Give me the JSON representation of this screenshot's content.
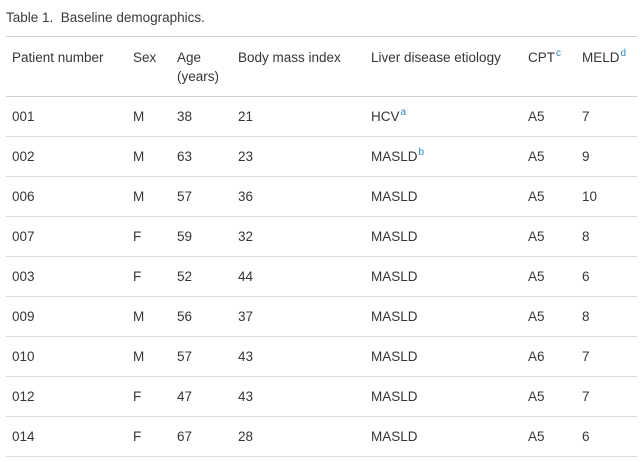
{
  "title": "Table 1.  Baseline demographics.",
  "colors": {
    "text": "#363636",
    "footnote_link_blue": "#2d87c0",
    "header_border": "#c9d2da",
    "row_separator": "#d8dcdf",
    "background": "#ffffff"
  },
  "table": {
    "columns": [
      {
        "label": "Patient number",
        "label2": "",
        "sup": ""
      },
      {
        "label": "Sex",
        "label2": "",
        "sup": ""
      },
      {
        "label": "Age",
        "label2": "(years)",
        "sup": ""
      },
      {
        "label": "Body mass index",
        "label2": "",
        "sup": ""
      },
      {
        "label": "Liver disease etiology",
        "label2": "",
        "sup": ""
      },
      {
        "label": "CPT",
        "label2": "",
        "sup": "c"
      },
      {
        "label": "MELD",
        "label2": "",
        "sup": "d"
      }
    ],
    "rows": [
      {
        "patient": "001",
        "sex": "M",
        "age": "38",
        "bmi": "21",
        "etiology": "HCV",
        "etiology_sup": "a",
        "cpt": "A5",
        "meld": "7"
      },
      {
        "patient": "002",
        "sex": "M",
        "age": "63",
        "bmi": "23",
        "etiology": "MASLD",
        "etiology_sup": "b",
        "cpt": "A5",
        "meld": "9"
      },
      {
        "patient": "006",
        "sex": "M",
        "age": "57",
        "bmi": "36",
        "etiology": "MASLD",
        "etiology_sup": "",
        "cpt": "A5",
        "meld": "10"
      },
      {
        "patient": "007",
        "sex": "F",
        "age": "59",
        "bmi": "32",
        "etiology": "MASLD",
        "etiology_sup": "",
        "cpt": "A5",
        "meld": "8"
      },
      {
        "patient": "003",
        "sex": "F",
        "age": "52",
        "bmi": "44",
        "etiology": "MASLD",
        "etiology_sup": "",
        "cpt": "A5",
        "meld": "6"
      },
      {
        "patient": "009",
        "sex": "M",
        "age": "56",
        "bmi": "37",
        "etiology": "MASLD",
        "etiology_sup": "",
        "cpt": "A5",
        "meld": "8"
      },
      {
        "patient": "010",
        "sex": "M",
        "age": "57",
        "bmi": "43",
        "etiology": "MASLD",
        "etiology_sup": "",
        "cpt": "A6",
        "meld": "7"
      },
      {
        "patient": "012",
        "sex": "F",
        "age": "47",
        "bmi": "43",
        "etiology": "MASLD",
        "etiology_sup": "",
        "cpt": "A5",
        "meld": "7"
      },
      {
        "patient": "014",
        "sex": "F",
        "age": "67",
        "bmi": "28",
        "etiology": "MASLD",
        "etiology_sup": "",
        "cpt": "A5",
        "meld": "6"
      }
    ]
  }
}
